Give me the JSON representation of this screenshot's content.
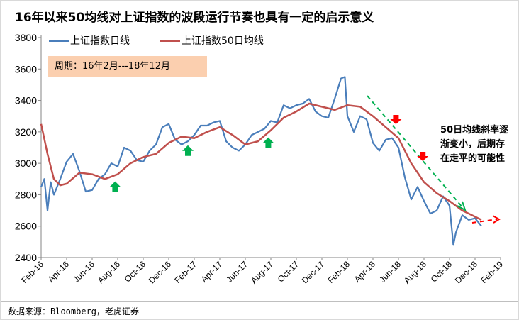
{
  "chart_data": {
    "type": "line",
    "title": "16年以来50均线对上证指数的波段运行节奏也具有一定的启示意义",
    "xlabel": "",
    "ylabel": "",
    "ylim": [
      2400,
      3800
    ],
    "yticks": [
      "2400",
      "2600",
      "2800",
      "3000",
      "3200",
      "3400",
      "3600",
      "3800"
    ],
    "xticks": [
      "Feb-16",
      "Apr-16",
      "Jun-16",
      "Aug-16",
      "Oct-16",
      "Dec-16",
      "Feb-17",
      "Apr-17",
      "Jun-17",
      "Aug-17",
      "Oct-17",
      "Dec-17",
      "Feb-18",
      "Apr-18",
      "Jun-18",
      "Aug-18",
      "Oct-18",
      "Dec-18",
      "Feb-19"
    ],
    "x_unit": "months since Feb-16",
    "xlim": [
      0,
      36
    ],
    "grid": false,
    "legend_position": "top-left",
    "series": [
      {
        "name": "上证指数日线",
        "color": "#4a7ebb",
        "x": [
          0,
          0.25,
          0.5,
          0.75,
          1,
          1.5,
          2,
          2.5,
          3,
          3.5,
          4,
          4.5,
          5,
          5.5,
          6,
          6.5,
          7,
          7.5,
          8,
          8.5,
          9,
          9.5,
          10,
          10.5,
          11,
          11.5,
          12,
          12.5,
          13,
          13.5,
          14,
          14.5,
          15,
          15.5,
          16,
          16.5,
          17,
          17.5,
          18,
          18.5,
          19,
          19.5,
          20,
          20.5,
          21,
          21.5,
          22,
          22.5,
          23,
          23.5,
          23.8,
          24,
          24.5,
          25,
          25.5,
          26,
          26.5,
          27,
          27.5,
          28,
          28.5,
          29,
          29.5,
          30,
          30.5,
          31,
          31.5,
          32,
          32.3,
          32.5,
          33,
          33.5,
          34,
          34.5
        ],
        "values": [
          2850,
          2900,
          2700,
          2880,
          2800,
          2900,
          3010,
          3060,
          2950,
          2820,
          2830,
          2900,
          2930,
          3000,
          2980,
          3100,
          3080,
          3020,
          3010,
          3080,
          3120,
          3230,
          3250,
          3150,
          3120,
          3140,
          3180,
          3240,
          3240,
          3260,
          3270,
          3140,
          3100,
          3080,
          3120,
          3180,
          3200,
          3220,
          3270,
          3260,
          3370,
          3350,
          3370,
          3380,
          3410,
          3330,
          3300,
          3290,
          3410,
          3540,
          3550,
          3300,
          3200,
          3300,
          3280,
          3130,
          3080,
          3150,
          3160,
          3100,
          2910,
          2770,
          2850,
          2760,
          2680,
          2700,
          2790,
          2730,
          2480,
          2560,
          2670,
          2640,
          2650,
          2600
        ]
      },
      {
        "name": "上证指数50日均线",
        "color": "#c0504d",
        "x": [
          0,
          0.5,
          1,
          1.5,
          2,
          3,
          4,
          5,
          6,
          7,
          8,
          9,
          10,
          11,
          12,
          13,
          14,
          15,
          16,
          17,
          18,
          19,
          20,
          21,
          22,
          23,
          24,
          25,
          26,
          27,
          28,
          29,
          30,
          31,
          32,
          33,
          34,
          34.5
        ],
        "values": [
          3250,
          3060,
          2900,
          2860,
          2870,
          2940,
          2930,
          2900,
          2930,
          3000,
          3040,
          3060,
          3130,
          3170,
          3160,
          3200,
          3230,
          3180,
          3120,
          3140,
          3210,
          3290,
          3330,
          3380,
          3360,
          3340,
          3370,
          3360,
          3300,
          3230,
          3160,
          3000,
          2880,
          2810,
          2760,
          2700,
          2660,
          2640
        ]
      }
    ],
    "annotations": {
      "period": "周期：16年2月---18年12月",
      "note": "50日均线斜率逐渐变小，后期存在走平的可能性",
      "up_arrows_months": [
        5.8,
        11.5,
        17.8
      ],
      "down_arrows_months": [
        27.8,
        29.9
      ],
      "up_colors": "#00b050",
      "down_color": "#ff0000"
    },
    "source": "数据来源：Bloomberg，老虎证券"
  }
}
